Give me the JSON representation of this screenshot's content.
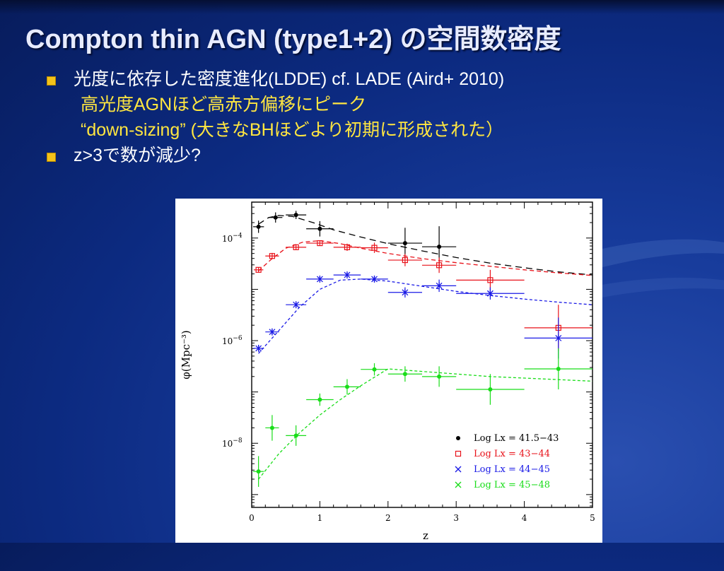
{
  "slide": {
    "title": "Compton thin AGN (type1+2) の空間数密度",
    "bullets": [
      {
        "main": "光度に依存した密度進化(LDDE)  cf.  LADE  (Aird+ 2010)",
        "sub1": "高光度AGNほど高赤方偏移にピーク",
        "sub2": "“down-sizing”  (大きなBHほどより初期に形成された）"
      },
      {
        "main": "z>3で数が減少?"
      }
    ]
  },
  "chart_data": {
    "type": "scatter",
    "xlabel": "z",
    "ylabel": "φ(Mpc⁻³)",
    "xlim": [
      0,
      5
    ],
    "ylim_log10": [
      -9.25,
      -3.3
    ],
    "yscale": "log",
    "xticks": [
      "0",
      "1",
      "2",
      "3",
      "4",
      "5"
    ],
    "yticks": [
      {
        "exp": -4,
        "label": "10",
        "sup": "−4"
      },
      {
        "exp": -6,
        "label": "10",
        "sup": "−6"
      },
      {
        "exp": -8,
        "label": "10",
        "sup": "−8"
      }
    ],
    "legend_position": "bottom-right",
    "series": [
      {
        "name": "Log Lx = 41.5−43",
        "color": "#000000",
        "marker": "dot",
        "points": [
          {
            "x": 0.1,
            "y": -3.78,
            "xerr": 0.08,
            "yerr": 0.12
          },
          {
            "x": 0.35,
            "y": -3.6,
            "xerr": 0.1,
            "yerr": 0.1
          },
          {
            "x": 0.65,
            "y": -3.55,
            "xerr": 0.15,
            "yerr": 0.08
          },
          {
            "x": 1.0,
            "y": -3.82,
            "xerr": 0.2,
            "yerr": 0.15
          },
          {
            "x": 2.25,
            "y": -4.1,
            "xerr": 0.25,
            "yerr": 0.3
          },
          {
            "x": 2.75,
            "y": -4.17,
            "xerr": 0.25,
            "yerr": 0.4
          }
        ],
        "model": [
          [
            0.1,
            -3.73
          ],
          [
            0.25,
            -3.6
          ],
          [
            0.4,
            -3.56
          ],
          [
            0.6,
            -3.58
          ],
          [
            0.9,
            -3.7
          ],
          [
            1.2,
            -3.84
          ],
          [
            1.6,
            -3.98
          ],
          [
            2.0,
            -4.11
          ],
          [
            2.5,
            -4.25
          ],
          [
            3.0,
            -4.38
          ],
          [
            3.5,
            -4.49
          ],
          [
            4.0,
            -4.58
          ],
          [
            4.5,
            -4.66
          ],
          [
            5.0,
            -4.72
          ]
        ]
      },
      {
        "name": "Log Lx = 43−44",
        "color": "#e8121a",
        "marker": "open-square",
        "points": [
          {
            "x": 0.1,
            "y": -4.62,
            "xerr": 0.07,
            "yerr": 0.05
          },
          {
            "x": 0.3,
            "y": -4.35,
            "xerr": 0.1,
            "yerr": 0.06
          },
          {
            "x": 0.65,
            "y": -4.18,
            "xerr": 0.15,
            "yerr": 0.05
          },
          {
            "x": 1.0,
            "y": -4.1,
            "xerr": 0.2,
            "yerr": 0.05
          },
          {
            "x": 1.4,
            "y": -4.18,
            "xerr": 0.2,
            "yerr": 0.07
          },
          {
            "x": 1.8,
            "y": -4.19,
            "xerr": 0.2,
            "yerr": 0.1
          },
          {
            "x": 2.25,
            "y": -4.43,
            "xerr": 0.25,
            "yerr": 0.12
          },
          {
            "x": 2.75,
            "y": -4.53,
            "xerr": 0.25,
            "yerr": 0.15
          },
          {
            "x": 3.5,
            "y": -4.82,
            "xerr": 0.5,
            "yerr": 0.2
          },
          {
            "x": 4.5,
            "y": -5.75,
            "xerr": 0.5,
            "yerr": 0.45
          }
        ],
        "model": [
          [
            0.1,
            -4.64
          ],
          [
            0.3,
            -4.4
          ],
          [
            0.5,
            -4.2
          ],
          [
            0.75,
            -4.08
          ],
          [
            1.0,
            -4.05
          ],
          [
            1.3,
            -4.11
          ],
          [
            1.6,
            -4.2
          ],
          [
            2.0,
            -4.3
          ],
          [
            2.5,
            -4.4
          ],
          [
            3.0,
            -4.48
          ],
          [
            3.5,
            -4.55
          ],
          [
            4.0,
            -4.62
          ],
          [
            4.5,
            -4.68
          ],
          [
            5.0,
            -4.73
          ]
        ]
      },
      {
        "name": "Log Lx = 44−45",
        "color": "#1a1ae6",
        "marker": "asterisk",
        "points": [
          {
            "x": 0.1,
            "y": -6.15,
            "xerr": 0.08,
            "yerr": 0.06
          },
          {
            "x": 0.3,
            "y": -5.83,
            "xerr": 0.1,
            "yerr": 0.06
          },
          {
            "x": 0.65,
            "y": -5.3,
            "xerr": 0.15,
            "yerr": 0.05
          },
          {
            "x": 1.0,
            "y": -4.8,
            "xerr": 0.2,
            "yerr": 0.05
          },
          {
            "x": 1.4,
            "y": -4.72,
            "xerr": 0.2,
            "yerr": 0.05
          },
          {
            "x": 1.8,
            "y": -4.8,
            "xerr": 0.2,
            "yerr": 0.06
          },
          {
            "x": 2.25,
            "y": -5.06,
            "xerr": 0.25,
            "yerr": 0.1
          },
          {
            "x": 2.75,
            "y": -4.93,
            "xerr": 0.25,
            "yerr": 0.12
          },
          {
            "x": 3.5,
            "y": -5.08,
            "xerr": 0.5,
            "yerr": 0.12
          },
          {
            "x": 4.5,
            "y": -5.95,
            "xerr": 0.5,
            "yerr": 0.4
          }
        ],
        "model": [
          [
            0.1,
            -6.25
          ],
          [
            0.4,
            -5.8
          ],
          [
            0.7,
            -5.35
          ],
          [
            1.0,
            -5.0
          ],
          [
            1.3,
            -4.82
          ],
          [
            1.6,
            -4.8
          ],
          [
            2.0,
            -4.84
          ],
          [
            2.5,
            -4.94
          ],
          [
            3.0,
            -5.04
          ],
          [
            3.5,
            -5.12
          ],
          [
            4.0,
            -5.19
          ],
          [
            4.5,
            -5.25
          ],
          [
            5.0,
            -5.3
          ]
        ]
      },
      {
        "name": "Log Lx = 45−48",
        "color": "#19dd19",
        "marker": "dot",
        "points": [
          {
            "x": 0.1,
            "y": -8.55,
            "xerr": 0.08,
            "yerr": 0.3
          },
          {
            "x": 0.3,
            "y": -7.7,
            "xerr": 0.1,
            "yerr": 0.25
          },
          {
            "x": 0.65,
            "y": -7.85,
            "xerr": 0.15,
            "yerr": 0.2
          },
          {
            "x": 1.0,
            "y": -7.15,
            "xerr": 0.2,
            "yerr": 0.12
          },
          {
            "x": 1.4,
            "y": -6.9,
            "xerr": 0.2,
            "yerr": 0.15
          },
          {
            "x": 1.8,
            "y": -6.56,
            "xerr": 0.2,
            "yerr": 0.12
          },
          {
            "x": 2.25,
            "y": -6.65,
            "xerr": 0.25,
            "yerr": 0.15
          },
          {
            "x": 2.75,
            "y": -6.7,
            "xerr": 0.25,
            "yerr": 0.2
          },
          {
            "x": 3.5,
            "y": -6.95,
            "xerr": 0.5,
            "yerr": 0.3
          },
          {
            "x": 4.5,
            "y": -6.55,
            "xerr": 0.5,
            "yerr": 0.4
          }
        ],
        "model": [
          [
            0.1,
            -8.7
          ],
          [
            0.4,
            -8.2
          ],
          [
            0.7,
            -7.8
          ],
          [
            1.0,
            -7.45
          ],
          [
            1.3,
            -7.15
          ],
          [
            1.6,
            -6.88
          ],
          [
            1.9,
            -6.63
          ],
          [
            2.0,
            -6.55
          ],
          [
            2.5,
            -6.6
          ],
          [
            3.0,
            -6.65
          ],
          [
            3.5,
            -6.7
          ],
          [
            4.0,
            -6.73
          ],
          [
            4.5,
            -6.76
          ],
          [
            5.0,
            -6.79
          ]
        ]
      }
    ]
  }
}
